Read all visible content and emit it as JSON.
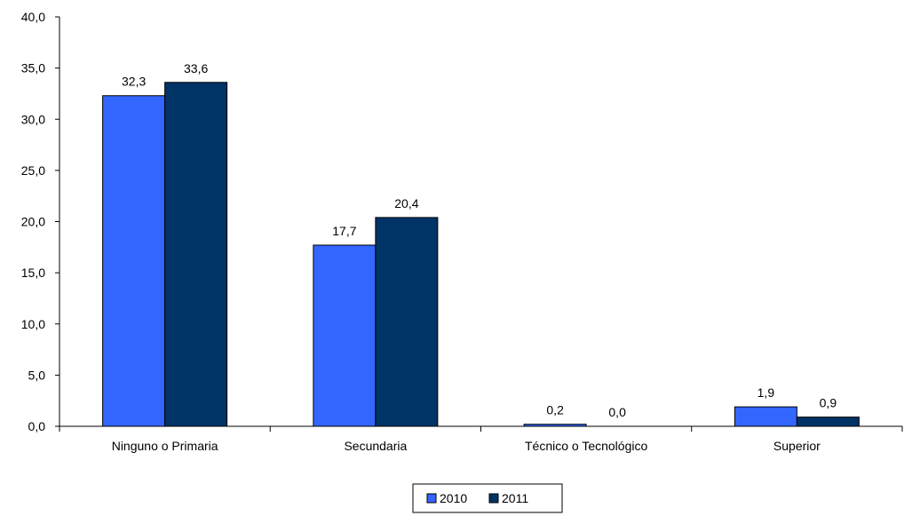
{
  "chart_data": {
    "type": "bar",
    "title": "",
    "xlabel": "",
    "ylabel": "",
    "categories": [
      "Ninguno o Primaria",
      "Secundaria",
      "Técnico o Tecnológico",
      "Superior"
    ],
    "series": [
      {
        "name": "2010",
        "values": [
          32.3,
          17.7,
          0.2,
          1.9
        ],
        "labels": [
          "32,3",
          "17,7",
          "0,2",
          "1,9"
        ],
        "color": "#3366ff"
      },
      {
        "name": "2011",
        "values": [
          33.6,
          20.4,
          0.0,
          0.9
        ],
        "labels": [
          "33,6",
          "20,4",
          "0,0",
          "0,9"
        ],
        "color": "#003366"
      }
    ],
    "ylim": [
      0,
      40
    ],
    "yticks": [
      0,
      5,
      10,
      15,
      20,
      25,
      30,
      35,
      40
    ],
    "ytick_labels": [
      "0,0",
      "5,0",
      "10,0",
      "15,0",
      "20,0",
      "25,0",
      "30,0",
      "35,0",
      "40,0"
    ],
    "grid": false,
    "legend_position": "bottom-center"
  }
}
